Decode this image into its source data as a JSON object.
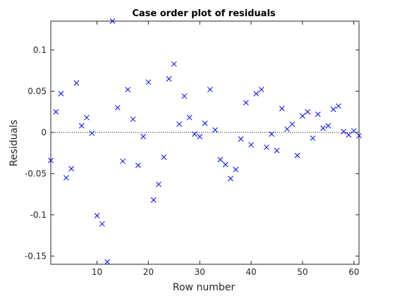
{
  "chart_data": {
    "type": "scatter",
    "title": "Case order plot of residuals",
    "xlabel": "Row number",
    "ylabel": "Residuals",
    "xlim": [
      1,
      61
    ],
    "ylim": [
      -0.16,
      0.135
    ],
    "xticks": [
      10,
      20,
      30,
      40,
      50,
      60
    ],
    "yticks": [
      -0.15,
      -0.1,
      -0.05,
      0,
      0.05,
      0.1
    ],
    "ytick_labels": [
      "-0.15",
      "-0.1",
      "-0.05",
      "0",
      "0.05",
      "0.1"
    ],
    "marker": "x",
    "marker_color": "#0000ff",
    "zero_line": true,
    "grid": false,
    "x": [
      1,
      2,
      3,
      4,
      5,
      6,
      7,
      8,
      9,
      10,
      11,
      12,
      13,
      14,
      15,
      16,
      17,
      18,
      19,
      20,
      21,
      22,
      23,
      24,
      25,
      26,
      27,
      28,
      29,
      30,
      31,
      32,
      33,
      34,
      35,
      36,
      37,
      38,
      39,
      40,
      41,
      42,
      43,
      44,
      45,
      46,
      47,
      48,
      49,
      50,
      51,
      52,
      53,
      54,
      55,
      56,
      57,
      58,
      59,
      60,
      61
    ],
    "y": [
      -0.034,
      0.025,
      0.047,
      -0.055,
      -0.044,
      0.06,
      0.008,
      0.018,
      -0.001,
      -0.101,
      -0.111,
      -0.157,
      0.135,
      0.03,
      -0.035,
      0.052,
      0.016,
      -0.04,
      -0.005,
      0.061,
      -0.082,
      -0.063,
      -0.03,
      0.065,
      0.083,
      0.01,
      0.044,
      0.018,
      -0.002,
      -0.005,
      0.011,
      0.052,
      0.003,
      -0.033,
      -0.039,
      -0.056,
      -0.045,
      -0.008,
      0.036,
      -0.015,
      0.047,
      0.052,
      -0.018,
      -0.002,
      -0.022,
      0.029,
      0.004,
      0.01,
      -0.028,
      0.02,
      0.025,
      -0.007,
      0.022,
      0.005,
      0.008,
      0.028,
      0.032,
      0.001,
      -0.003,
      0.002,
      -0.004
    ]
  }
}
